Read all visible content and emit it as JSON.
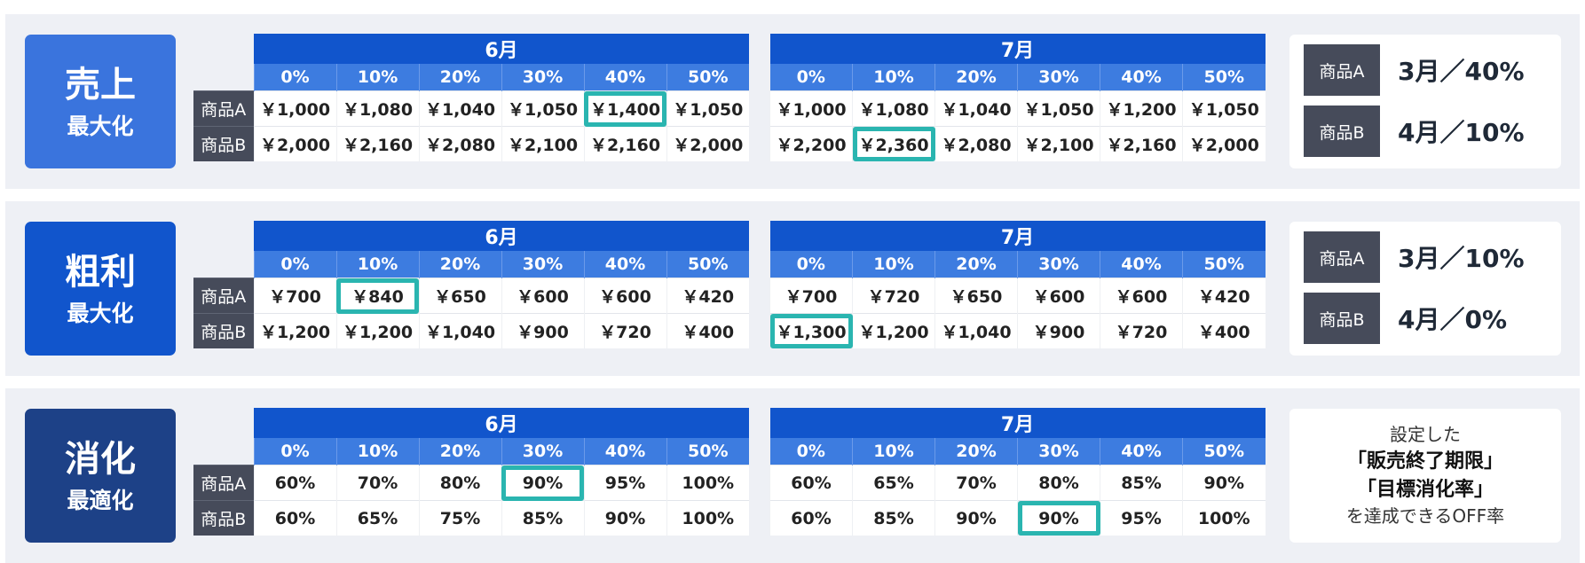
{
  "colors": {
    "sales_label": "#3a74dd",
    "profit_label": "#1155cc",
    "digest_label": "#1d4187",
    "highlight": "#2ab5b0"
  },
  "sections": [
    {
      "id": "sales",
      "title": "売上",
      "subtitle": "最大化",
      "tables": [
        {
          "month": "6月",
          "cols": [
            "0%",
            "10%",
            "20%",
            "30%",
            "40%",
            "50%"
          ],
          "rows": [
            {
              "label": "商品A",
              "values": [
                "￥1,000",
                "￥1,080",
                "￥1,040",
                "￥1,050",
                "￥1,400",
                "￥1,050"
              ],
              "highlight": 4
            },
            {
              "label": "商品B",
              "values": [
                "￥2,000",
                "￥2,160",
                "￥2,080",
                "￥2,100",
                "￥2,160",
                "￥2,000"
              ],
              "highlight": -1
            }
          ]
        },
        {
          "month": "7月",
          "cols": [
            "0%",
            "10%",
            "20%",
            "30%",
            "40%",
            "50%"
          ],
          "rows": [
            {
              "label": "",
              "values": [
                "￥1,000",
                "￥1,080",
                "￥1,040",
                "￥1,050",
                "￥1,200",
                "￥1,050"
              ],
              "highlight": -1
            },
            {
              "label": "",
              "values": [
                "￥2,200",
                "￥2,360",
                "￥2,080",
                "￥2,100",
                "￥2,160",
                "￥2,000"
              ],
              "highlight": 1
            }
          ]
        }
      ],
      "result": [
        {
          "label": "商品A",
          "value": "3月／40%"
        },
        {
          "label": "商品B",
          "value": "4月／10%"
        }
      ]
    },
    {
      "id": "profit",
      "title": "粗利",
      "subtitle": "最大化",
      "tables": [
        {
          "month": "6月",
          "cols": [
            "0%",
            "10%",
            "20%",
            "30%",
            "40%",
            "50%"
          ],
          "rows": [
            {
              "label": "商品A",
              "values": [
                "￥700",
                "￥840",
                "￥650",
                "￥600",
                "￥600",
                "￥420"
              ],
              "highlight": 1
            },
            {
              "label": "商品B",
              "values": [
                "￥1,200",
                "￥1,200",
                "￥1,040",
                "￥900",
                "￥720",
                "￥400"
              ],
              "highlight": -1
            }
          ]
        },
        {
          "month": "7月",
          "cols": [
            "0%",
            "10%",
            "20%",
            "30%",
            "40%",
            "50%"
          ],
          "rows": [
            {
              "label": "",
              "values": [
                "￥700",
                "￥720",
                "￥650",
                "￥600",
                "￥600",
                "￥420"
              ],
              "highlight": -1
            },
            {
              "label": "",
              "values": [
                "￥1,300",
                "￥1,200",
                "￥1,040",
                "￥900",
                "￥720",
                "￥400"
              ],
              "highlight": 0
            }
          ]
        }
      ],
      "result": [
        {
          "label": "商品A",
          "value": "3月／10%"
        },
        {
          "label": "商品B",
          "value": "4月／0%"
        }
      ]
    },
    {
      "id": "digest",
      "title": "消化",
      "subtitle": "最適化",
      "tables": [
        {
          "month": "6月",
          "cols": [
            "0%",
            "10%",
            "20%",
            "30%",
            "40%",
            "50%"
          ],
          "rows": [
            {
              "label": "商品A",
              "values": [
                "60%",
                "70%",
                "80%",
                "90%",
                "95%",
                "100%"
              ],
              "highlight": 3
            },
            {
              "label": "商品B",
              "values": [
                "60%",
                "65%",
                "75%",
                "85%",
                "90%",
                "100%"
              ],
              "highlight": -1
            }
          ]
        },
        {
          "month": "7月",
          "cols": [
            "0%",
            "10%",
            "20%",
            "30%",
            "40%",
            "50%"
          ],
          "rows": [
            {
              "label": "",
              "values": [
                "60%",
                "65%",
                "70%",
                "80%",
                "85%",
                "90%"
              ],
              "highlight": -1
            },
            {
              "label": "",
              "values": [
                "60%",
                "85%",
                "90%",
                "90%",
                "95%",
                "100%"
              ],
              "highlight": 3
            }
          ]
        }
      ],
      "note": [
        "設定した",
        "「販売終了期限」",
        "「目標消化率」",
        "を達成できるOFF率"
      ]
    }
  ]
}
